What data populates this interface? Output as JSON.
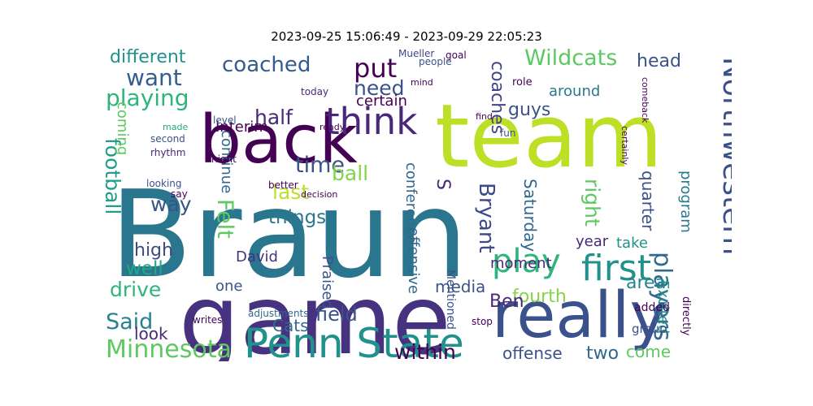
{
  "title": "2023-09-25 15:06:49 - 2023-09-29 22:05:23",
  "colors": {
    "background": "#ffffff",
    "palette": "viridis"
  },
  "words": [
    {
      "text": "Braun",
      "color": "#2a768e"
    },
    {
      "text": "game",
      "color": "#46327e"
    },
    {
      "text": "team",
      "color": "#bddf26"
    },
    {
      "text": "really",
      "color": "#3b518b"
    },
    {
      "text": "back",
      "color": "#440154"
    },
    {
      "text": "Penn State",
      "color": "#21918c"
    },
    {
      "text": "play",
      "color": "#2fb47c"
    },
    {
      "text": "first",
      "color": "#21918c"
    },
    {
      "text": "Northwestern",
      "color": "#3b518b"
    },
    {
      "text": "think",
      "color": "#482878"
    },
    {
      "text": "Minnesota",
      "color": "#5ec962"
    },
    {
      "text": "want",
      "color": "#365c8d"
    },
    {
      "text": "playing",
      "color": "#2fb47c"
    },
    {
      "text": "coached",
      "color": "#365c8d"
    },
    {
      "text": "put",
      "color": "#440154"
    },
    {
      "text": "need",
      "color": "#3b518b"
    },
    {
      "text": "half",
      "color": "#482878"
    },
    {
      "text": "Wildcats",
      "color": "#5ec962"
    },
    {
      "text": "head",
      "color": "#3b528b"
    },
    {
      "text": "different",
      "color": "#21918c"
    },
    {
      "text": "players",
      "color": "#31688e"
    },
    {
      "text": "time",
      "color": "#3b528b"
    },
    {
      "text": "ball",
      "color": "#84d44b"
    },
    {
      "text": "last",
      "color": "#bddf26"
    },
    {
      "text": "things",
      "color": "#2a788e"
    },
    {
      "text": "way",
      "color": "#3b528b"
    },
    {
      "text": "Felt",
      "color": "#5ec962"
    },
    {
      "text": "football",
      "color": "#1f9e89"
    },
    {
      "text": "drive",
      "color": "#2fb47c"
    },
    {
      "text": "Said",
      "color": "#26828e"
    },
    {
      "text": "well",
      "color": "#22a884"
    },
    {
      "text": "high",
      "color": "#3e4989"
    },
    {
      "text": "field",
      "color": "#3b528b"
    },
    {
      "text": "fourth",
      "color": "#84d44b"
    },
    {
      "text": "Ben",
      "color": "#482878"
    },
    {
      "text": "offense",
      "color": "#3b528b"
    },
    {
      "text": "two",
      "color": "#31688e"
    },
    {
      "text": "come",
      "color": "#5ec962"
    },
    {
      "text": "area",
      "color": "#26828e"
    },
    {
      "text": "Saturday",
      "color": "#31688e"
    },
    {
      "text": "Bryant",
      "color": "#3e4989"
    },
    {
      "text": "right",
      "color": "#5ec962"
    },
    {
      "text": "quarter",
      "color": "#3b528b"
    },
    {
      "text": "guys",
      "color": "#3b528b"
    },
    {
      "text": "coaches",
      "color": "#414487"
    },
    {
      "text": "certain",
      "color": "#440154"
    },
    {
      "text": "S",
      "color": "#482878"
    },
    {
      "text": "around",
      "color": "#2a788e"
    },
    {
      "text": "year",
      "color": "#482878"
    },
    {
      "text": "take",
      "color": "#21918c"
    },
    {
      "text": "within",
      "color": "#440154"
    },
    {
      "text": "media",
      "color": "#3b528b"
    },
    {
      "text": "moment",
      "color": "#482878"
    },
    {
      "text": "look",
      "color": "#482878"
    },
    {
      "text": "Cats",
      "color": "#31688e"
    },
    {
      "text": "Praised",
      "color": "#3b528b"
    },
    {
      "text": "Excited",
      "color": "#21918c"
    },
    {
      "text": "continue",
      "color": "#31688e"
    },
    {
      "text": "Interim",
      "color": "#440154"
    },
    {
      "text": "David",
      "color": "#46327e"
    },
    {
      "text": "one",
      "color": "#3b528b"
    },
    {
      "text": "coming",
      "color": "#5ec962"
    },
    {
      "text": "program",
      "color": "#2a788e"
    },
    {
      "text": "conference",
      "color": "#31688e"
    },
    {
      "text": "offensive",
      "color": "#31688e"
    },
    {
      "text": "Mentioned",
      "color": "#3b528b"
    },
    {
      "text": "added",
      "color": "#440154"
    },
    {
      "text": "group",
      "color": "#3b528b"
    },
    {
      "text": "Mueller",
      "color": "#414487"
    },
    {
      "text": "people",
      "color": "#3b528b"
    },
    {
      "text": "today",
      "color": "#482878"
    },
    {
      "text": "level",
      "color": "#3b528b"
    },
    {
      "text": "second",
      "color": "#3b528b"
    },
    {
      "text": "rhythm",
      "color": "#482878"
    },
    {
      "text": "night",
      "color": "#440154"
    },
    {
      "text": "looking",
      "color": "#3b528b"
    },
    {
      "text": "say",
      "color": "#440154"
    },
    {
      "text": "adjustments",
      "color": "#31688e"
    },
    {
      "text": "writes",
      "color": "#440154"
    },
    {
      "text": "better",
      "color": "#440154"
    },
    {
      "text": "decision",
      "color": "#440154"
    },
    {
      "text": "fun",
      "color": "#3b528b"
    },
    {
      "text": "ready",
      "color": "#440154"
    },
    {
      "text": "certainly",
      "color": "#440154"
    },
    {
      "text": "comeback",
      "color": "#440154"
    },
    {
      "text": "role",
      "color": "#440154"
    },
    {
      "text": "directly",
      "color": "#440154"
    },
    {
      "text": "made",
      "color": "#22a884"
    },
    {
      "text": "goal",
      "color": "#440154"
    },
    {
      "text": "mind",
      "color": "#440154"
    },
    {
      "text": "find",
      "color": "#440154"
    },
    {
      "text": "stop",
      "color": "#440154"
    }
  ]
}
